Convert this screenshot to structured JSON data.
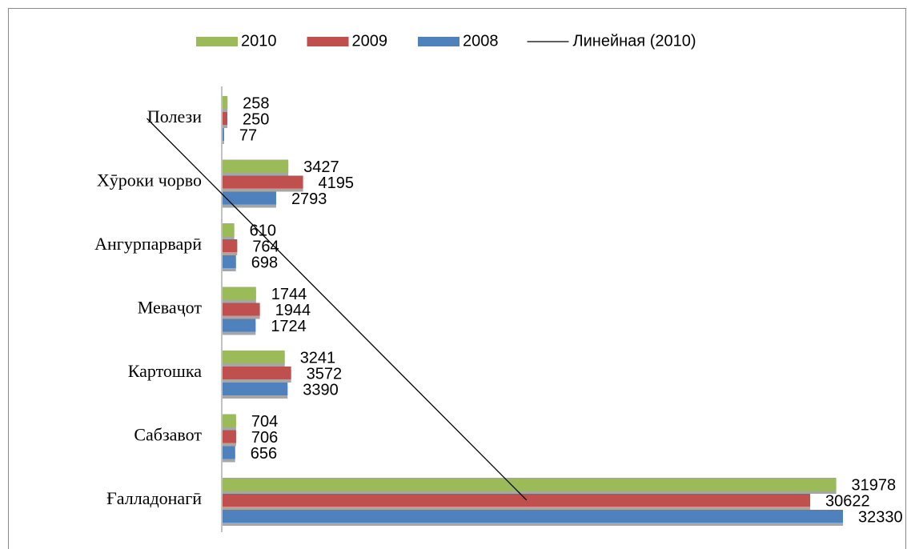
{
  "chart_data": {
    "type": "hbar",
    "categories": [
      "Ғалладонагӣ",
      "Сабзавот",
      "Картошка",
      "Меваҷот",
      "Ангурпарварӣ",
      "Хӯроки чорво",
      "Полези"
    ],
    "series": [
      {
        "name": "2010",
        "color": "#9bbb59",
        "values": [
          31978,
          704,
          3241,
          1744,
          610,
          3427,
          258
        ]
      },
      {
        "name": "2009",
        "color": "#c0504d",
        "values": [
          30622,
          706,
          3572,
          1944,
          764,
          4195,
          250
        ]
      },
      {
        "name": "2008",
        "color": "#4f81bd",
        "values": [
          32330,
          656,
          3390,
          1724,
          698,
          2793,
          77
        ]
      }
    ],
    "trendline": {
      "name": "Линейная (2010)",
      "type": "linear",
      "series": 0,
      "color": "#000000"
    },
    "legend": "top"
  }
}
